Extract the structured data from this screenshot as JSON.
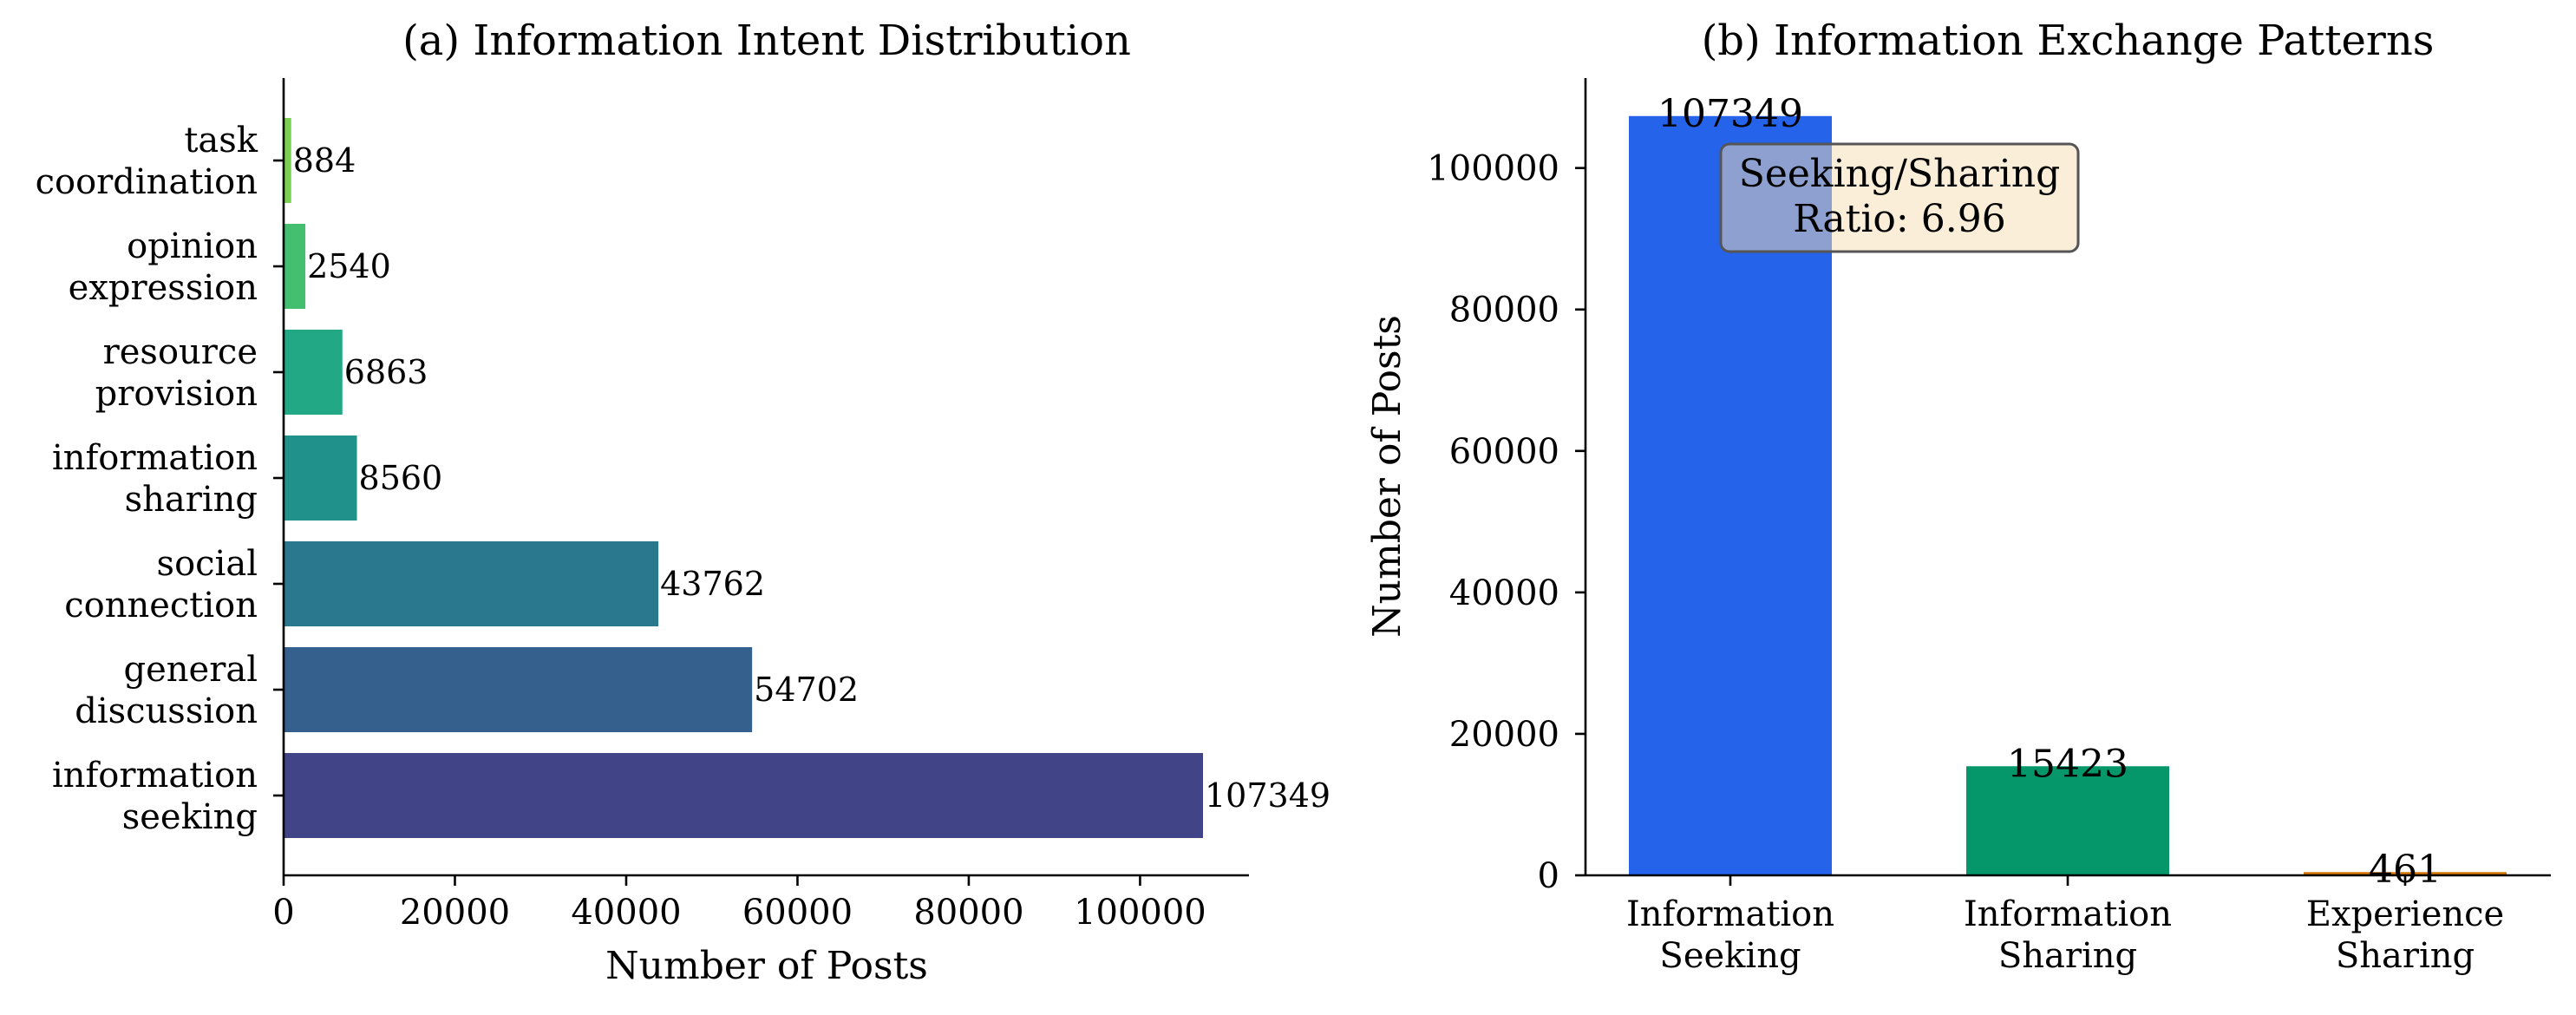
{
  "chart_data": [
    {
      "type": "bar",
      "orientation": "horizontal",
      "title": "(a) Information Intent Distribution",
      "xlabel": "Number of Posts",
      "ylabel": "",
      "xlim": [
        0,
        112717
      ],
      "xticks": [
        0,
        20000,
        40000,
        60000,
        80000,
        100000
      ],
      "categories": [
        [
          "information",
          "seeking"
        ],
        [
          "general",
          "discussion"
        ],
        [
          "social",
          "connection"
        ],
        [
          "information",
          "sharing"
        ],
        [
          "resource",
          "provision"
        ],
        [
          "opinion",
          "expression"
        ],
        [
          "task",
          "coordination"
        ]
      ],
      "values": [
        107349,
        54702,
        43762,
        8560,
        6863,
        2540,
        884
      ],
      "data_labels": [
        "107349",
        "54702",
        "43762",
        "8560",
        "6863",
        "2540",
        "884"
      ],
      "colors": [
        "#414487",
        "#355f8d",
        "#2a788e",
        "#21918c",
        "#22a884",
        "#44bf70",
        "#7ad151"
      ],
      "grid": false,
      "legend": "none"
    },
    {
      "type": "bar",
      "orientation": "vertical",
      "title": "(b) Information Exchange Patterns",
      "xlabel": "",
      "ylabel": "Number of Posts",
      "ylim": [
        0,
        112717
      ],
      "yticks": [
        0,
        20000,
        40000,
        60000,
        80000,
        100000
      ],
      "categories": [
        [
          "Information",
          "Seeking"
        ],
        [
          "Information",
          "Sharing"
        ],
        [
          "Experience",
          "Sharing"
        ]
      ],
      "values": [
        107349,
        15423,
        461
      ],
      "data_labels": [
        "107349",
        "15423",
        "461"
      ],
      "colors": [
        "#2563eb",
        "#059669",
        "#d97706"
      ],
      "annotation": [
        "Seeking/Sharing",
        "Ratio: 6.96"
      ],
      "grid": false,
      "legend": "none"
    }
  ]
}
